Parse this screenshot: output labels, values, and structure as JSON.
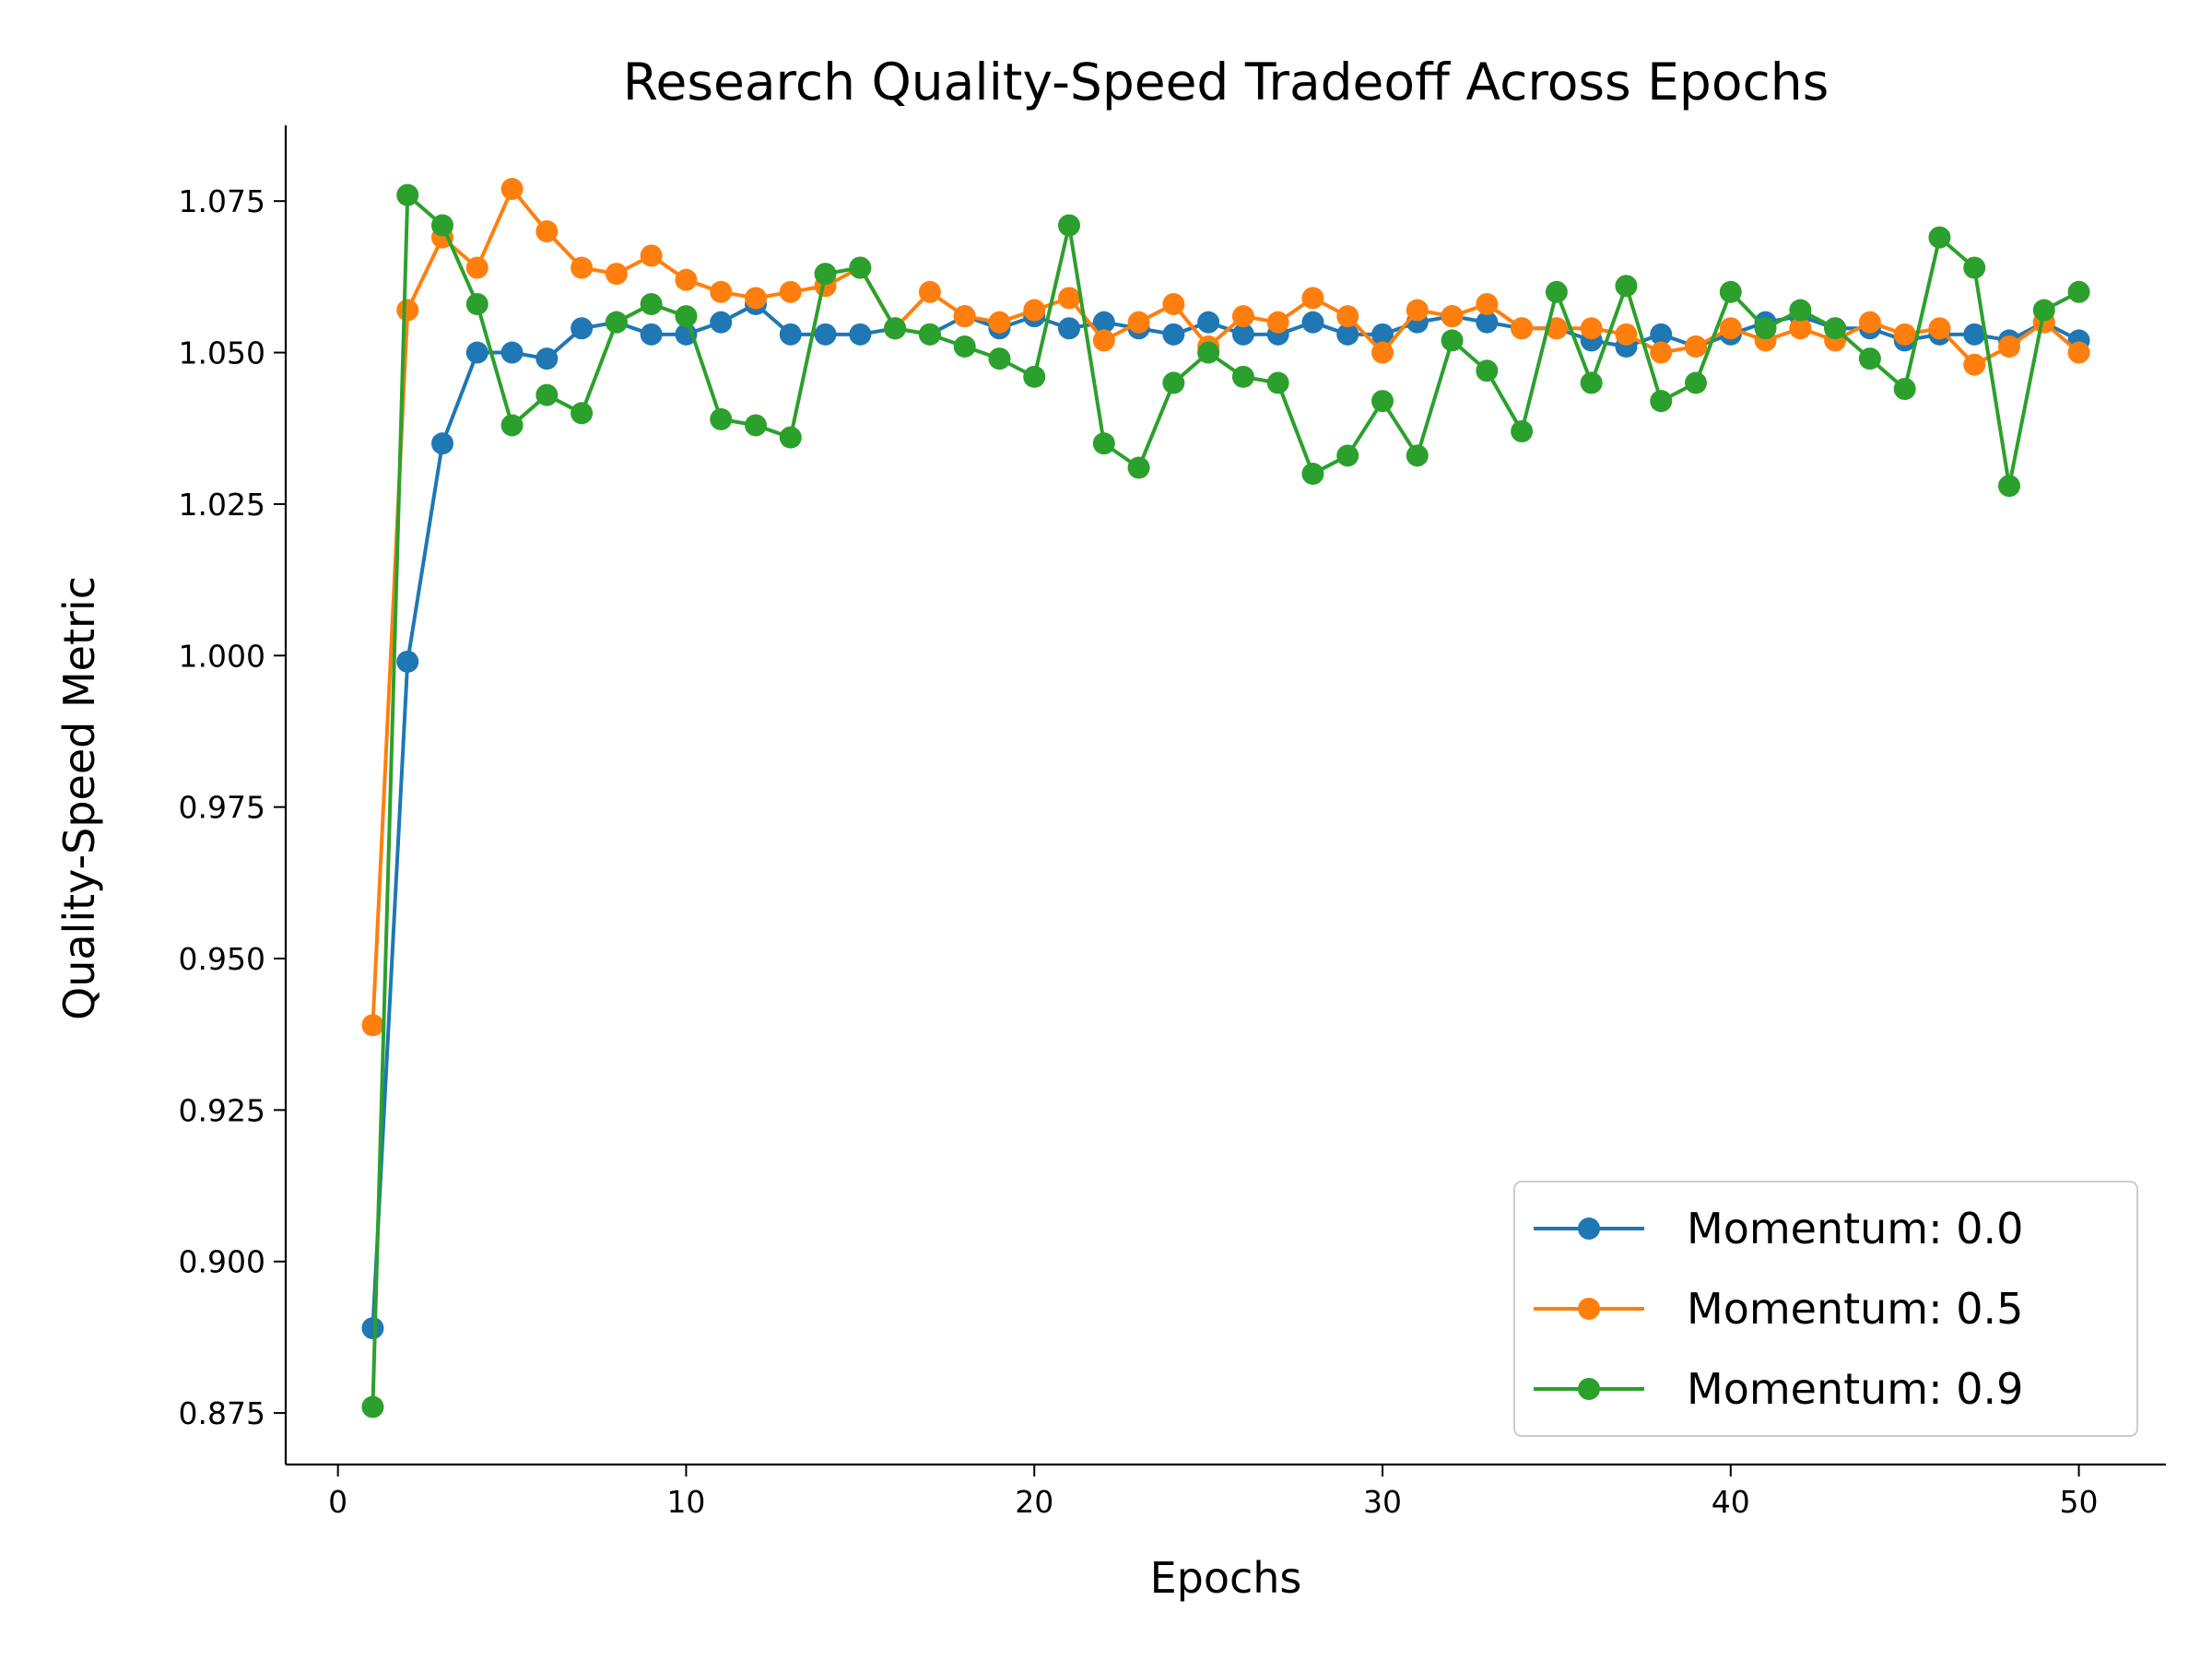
{
  "chart_data": {
    "type": "line",
    "title": "Research Quality-Speed Tradeoff Across Epochs",
    "xlabel": "Epochs",
    "ylabel": "Quality-Speed Metric",
    "xlim": [
      -1.5,
      52.5
    ],
    "ylim": [
      0.8665,
      1.0875
    ],
    "xticks": [
      0,
      10,
      20,
      30,
      40,
      50
    ],
    "yticks": [
      0.875,
      0.9,
      0.925,
      0.95,
      0.975,
      1.0,
      1.025,
      1.05,
      1.075
    ],
    "ytick_labels": [
      "0.875",
      "0.900",
      "0.925",
      "0.950",
      "0.975",
      "1.000",
      "1.025",
      "1.050",
      "1.075"
    ],
    "grid": false,
    "legend_position": "lower-right",
    "x": [
      1,
      2,
      3,
      4,
      5,
      6,
      7,
      8,
      9,
      10,
      11,
      12,
      13,
      14,
      15,
      16,
      17,
      18,
      19,
      20,
      21,
      22,
      23,
      24,
      25,
      26,
      27,
      28,
      29,
      30,
      31,
      32,
      33,
      34,
      35,
      36,
      37,
      38,
      39,
      40,
      41,
      42,
      43,
      44,
      45,
      46,
      47,
      48,
      49,
      50
    ],
    "series": [
      {
        "name": "Momentum: 0.0",
        "color": "#1f77b4",
        "values": [
          0.889,
          0.999,
          1.035,
          1.05,
          1.05,
          1.049,
          1.054,
          1.055,
          1.053,
          1.053,
          1.055,
          1.058,
          1.053,
          1.053,
          1.053,
          1.054,
          1.053,
          1.056,
          1.054,
          1.056,
          1.054,
          1.055,
          1.054,
          1.053,
          1.055,
          1.053,
          1.053,
          1.055,
          1.053,
          1.053,
          1.055,
          1.056,
          1.055,
          1.054,
          1.054,
          1.052,
          1.051,
          1.053,
          1.051,
          1.053,
          1.055,
          1.056,
          1.054,
          1.054,
          1.052,
          1.053,
          1.053,
          1.052,
          1.055,
          1.052
        ]
      },
      {
        "name": "Momentum: 0.5",
        "color": "#ff7f0e",
        "values": [
          0.939,
          1.057,
          1.069,
          1.064,
          1.077,
          1.07,
          1.064,
          1.063,
          1.066,
          1.062,
          1.06,
          1.059,
          1.06,
          1.061,
          1.064,
          1.054,
          1.06,
          1.056,
          1.055,
          1.057,
          1.059,
          1.052,
          1.055,
          1.058,
          1.051,
          1.056,
          1.055,
          1.059,
          1.056,
          1.05,
          1.057,
          1.056,
          1.058,
          1.054,
          1.054,
          1.054,
          1.053,
          1.05,
          1.051,
          1.054,
          1.052,
          1.054,
          1.052,
          1.055,
          1.053,
          1.054,
          1.048,
          1.051,
          1.055,
          1.05
        ]
      },
      {
        "name": "Momentum: 0.9",
        "color": "#2ca02c",
        "values": [
          0.876,
          1.076,
          1.071,
          1.058,
          1.038,
          1.043,
          1.04,
          1.055,
          1.058,
          1.056,
          1.039,
          1.038,
          1.036,
          1.063,
          1.064,
          1.054,
          1.053,
          1.051,
          1.049,
          1.046,
          1.071,
          1.035,
          1.031,
          1.045,
          1.05,
          1.046,
          1.045,
          1.03,
          1.033,
          1.042,
          1.033,
          1.052,
          1.047,
          1.037,
          1.06,
          1.045,
          1.061,
          1.042,
          1.045,
          1.06,
          1.054,
          1.057,
          1.054,
          1.049,
          1.044,
          1.069,
          1.064,
          1.028,
          1.057,
          1.06
        ]
      }
    ]
  }
}
